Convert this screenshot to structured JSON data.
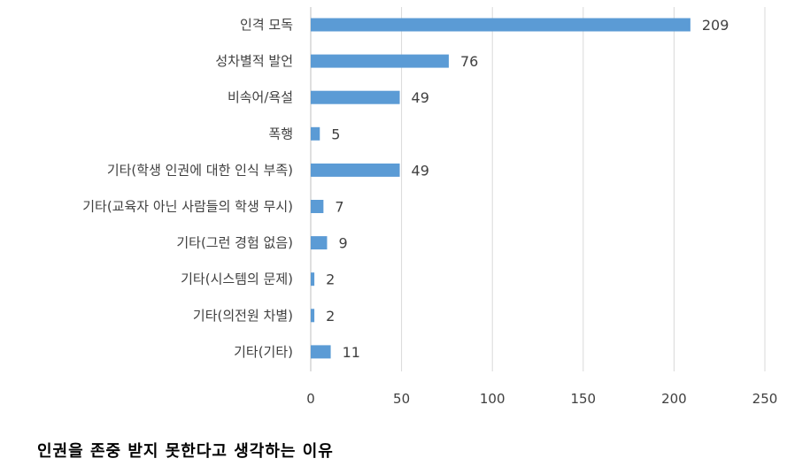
{
  "chart_data": {
    "type": "bar",
    "orientation": "horizontal",
    "title": "인권을 존중 받지 못한다고 생각하는 이유",
    "categories": [
      "인격 모독",
      "성차별적 발언",
      "비속어/욕설",
      "폭행",
      "기타(학생 인권에 대한 인식 부족)",
      "기타(교육자 아닌 사람들의 학생 무시)",
      "기타(그런 경험 없음)",
      "기타(시스템의 문제)",
      "기타(의전원 차별)",
      "기타(기타)"
    ],
    "values": [
      209,
      76,
      49,
      5,
      49,
      7,
      9,
      2,
      2,
      11
    ],
    "xlim": [
      0,
      250
    ],
    "xticks": [
      "0",
      "50",
      "100",
      "150",
      "200",
      "250"
    ],
    "grid": true,
    "bar_color": "#5b9bd5",
    "data_labels": true
  }
}
